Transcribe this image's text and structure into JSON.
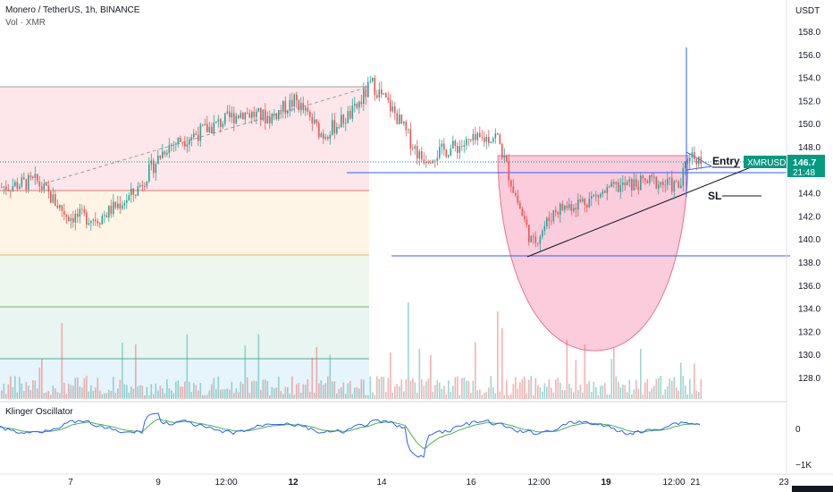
{
  "header": {
    "symbol_line": "Monero / TetherUS, 1h, BINANCE",
    "volume_label": "Vol · XMR"
  },
  "price_axis": {
    "currency": "USDT",
    "ticks": [
      "158.0",
      "156.0",
      "154.0",
      "152.0",
      "150.0",
      "148.0",
      "146.0",
      "144.0",
      "142.0",
      "140.0",
      "138.0",
      "136.0",
      "134.0",
      "132.0",
      "130.0",
      "128.0"
    ]
  },
  "price_tag": {
    "symbol": "XMRUSDT",
    "price": "146.7",
    "countdown": "21:48"
  },
  "oscillator": {
    "title": "Klinger Oscillator",
    "ticks": [
      "0",
      "−1K"
    ]
  },
  "time_axis": {
    "ticks": [
      "7",
      "9",
      "12:00",
      "12",
      "14",
      "16",
      "12:00",
      "19",
      "12:00",
      "21",
      "23"
    ]
  },
  "annotations": {
    "entry": "Entry",
    "stop_loss": "SL"
  },
  "colors": {
    "up": "#26a69a",
    "down": "#ef5350",
    "accent": "#089981",
    "line_blue": "#2962ff",
    "cup_fill": "#f48fb1"
  },
  "chart_data": {
    "type": "candlestick",
    "title": "Monero / TetherUS, 1h, BINANCE",
    "ylim": [
      126.5,
      159.5
    ],
    "y_unit": "USDT",
    "last_price": 146.7,
    "series": [
      {
        "name": "XMRUSDT",
        "anchors": [
          [
            0,
            144.5
          ],
          [
            40,
            145
          ],
          [
            75,
            142
          ],
          [
            110,
            141.8
          ],
          [
            150,
            144
          ],
          [
            185,
            148
          ],
          [
            230,
            149.5
          ],
          [
            270,
            151
          ],
          [
            300,
            150.5
          ],
          [
            330,
            152
          ],
          [
            360,
            149
          ],
          [
            395,
            151
          ],
          [
            415,
            153.5
          ],
          [
            440,
            151
          ],
          [
            470,
            147
          ],
          [
            510,
            148
          ],
          [
            555,
            149
          ],
          [
            575,
            144
          ],
          [
            595,
            139.5
          ],
          [
            620,
            142.5
          ],
          [
            660,
            143.5
          ],
          [
            690,
            144.5
          ],
          [
            730,
            145
          ],
          [
            760,
            144.5
          ],
          [
            770,
            147.5
          ],
          [
            785,
            146.7
          ]
        ]
      }
    ],
    "levels": [
      146.7,
      145.8,
      138.5
    ]
  }
}
